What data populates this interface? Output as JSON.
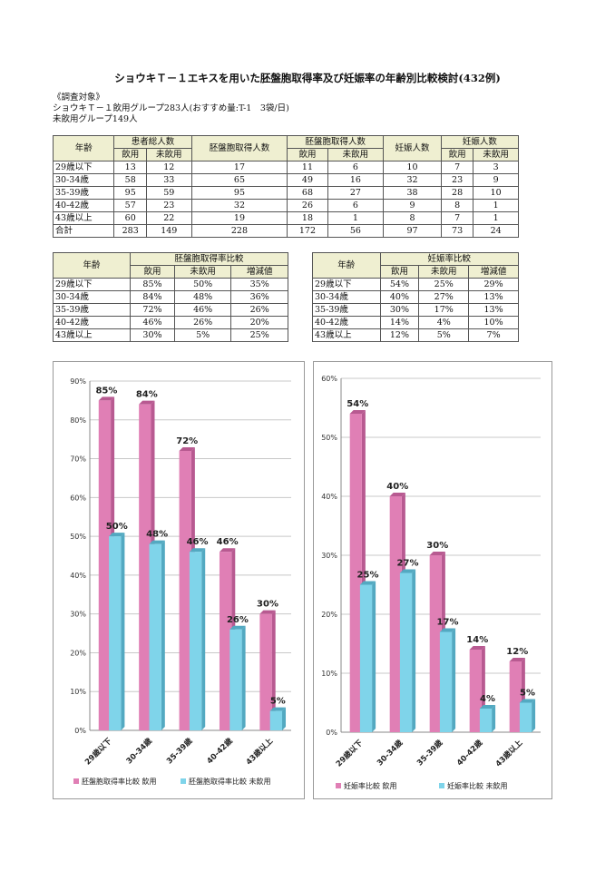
{
  "title": "ショウキＴ－１エキスを用いた胚盤胞取得率及び妊娠率の年齢別比較検討(432例)",
  "intro": {
    "line1": "《調査対象》",
    "line2": "ショウキＴ－１飲用グループ283人(おすすめ量:T-1　3袋/日)",
    "line3": "未飲用グループ149人"
  },
  "table1": {
    "headers": {
      "age": "年齢",
      "patients": "患者総人数",
      "blast": "胚盤胞取得人数",
      "blast_count": "胚盤胞取得人数",
      "preg_people": "妊娠人数",
      "preg_count": "妊娠人数",
      "drink": "飲用",
      "nodrink": "未飲用"
    },
    "rows": [
      [
        "29歳以下",
        "13",
        "12",
        "17",
        "11",
        "6",
        "10",
        "7",
        "3"
      ],
      [
        "30-34歳",
        "58",
        "33",
        "65",
        "49",
        "16",
        "32",
        "23",
        "9"
      ],
      [
        "35-39歳",
        "95",
        "59",
        "95",
        "68",
        "27",
        "38",
        "28",
        "10"
      ],
      [
        "40-42歳",
        "57",
        "23",
        "32",
        "26",
        "6",
        "9",
        "8",
        "1"
      ],
      [
        "43歳以上",
        "60",
        "22",
        "19",
        "18",
        "1",
        "8",
        "7",
        "1"
      ],
      [
        "合計",
        "283",
        "149",
        "228",
        "172",
        "56",
        "97",
        "73",
        "24"
      ]
    ]
  },
  "table2": {
    "headers": {
      "age": "年齢",
      "group": "胚盤胞取得率比較",
      "drink": "飲用",
      "nodrink": "未飲用",
      "diff": "増減値"
    },
    "rows": [
      [
        "29歳以下",
        "85%",
        "50%",
        "35%"
      ],
      [
        "30-34歳",
        "84%",
        "48%",
        "36%"
      ],
      [
        "35-39歳",
        "72%",
        "46%",
        "26%"
      ],
      [
        "40-42歳",
        "46%",
        "26%",
        "20%"
      ],
      [
        "43歳以上",
        "30%",
        "5%",
        "25%"
      ]
    ]
  },
  "table3": {
    "headers": {
      "age": "年齢",
      "group": "妊娠率比較",
      "drink": "飲用",
      "nodrink": "未飲用",
      "diff": "増減値"
    },
    "rows": [
      [
        "29歳以下",
        "54%",
        "25%",
        "29%"
      ],
      [
        "30-34歳",
        "40%",
        "27%",
        "13%"
      ],
      [
        "35-39歳",
        "30%",
        "17%",
        "13%"
      ],
      [
        "40-42歳",
        "14%",
        "4%",
        "10%"
      ],
      [
        "43歳以上",
        "12%",
        "5%",
        "7%"
      ]
    ]
  },
  "colors": {
    "drink": "#e07fb5",
    "drink_side": "#b85a91",
    "nodrink": "#7fd4ea",
    "nodrink_side": "#53a9c1"
  },
  "chart_data": [
    {
      "type": "bar",
      "categories": [
        "29歳以下",
        "30-34歳",
        "35-39歳",
        "40-42歳",
        "43歳以上"
      ],
      "series": [
        {
          "name": "胚盤胞取得率比較 飲用",
          "values": [
            85,
            84,
            72,
            46,
            30
          ],
          "labels": [
            "85%",
            "84%",
            "72%",
            "46%",
            "30%"
          ]
        },
        {
          "name": "胚盤胞取得率比較 未飲用",
          "values": [
            50,
            48,
            46,
            26,
            5
          ],
          "labels": [
            "50%",
            "48%",
            "46%",
            "26%",
            "5%"
          ]
        }
      ],
      "ylim": [
        0,
        90
      ],
      "yticks": [
        "0%",
        "10%",
        "20%",
        "30%",
        "40%",
        "50%",
        "60%",
        "70%",
        "80%",
        "90%"
      ],
      "grid": true,
      "legend_position": "bottom"
    },
    {
      "type": "bar",
      "categories": [
        "29歳以下",
        "30-34歳",
        "35-39歳",
        "40-42歳",
        "43歳以上"
      ],
      "series": [
        {
          "name": "妊娠率比較 飲用",
          "values": [
            54,
            40,
            30,
            14,
            12
          ],
          "labels": [
            "54%",
            "40%",
            "30%",
            "14%",
            "12%"
          ]
        },
        {
          "name": "妊娠率比較 未飲用",
          "values": [
            25,
            27,
            17,
            4,
            5
          ],
          "labels": [
            "25%",
            "27%",
            "17%",
            "4%",
            "5%"
          ]
        }
      ],
      "ylim": [
        0,
        60
      ],
      "yticks": [
        "0%",
        "10%",
        "20%",
        "30%",
        "40%",
        "50%",
        "60%"
      ],
      "grid": true,
      "legend_position": "bottom"
    }
  ]
}
